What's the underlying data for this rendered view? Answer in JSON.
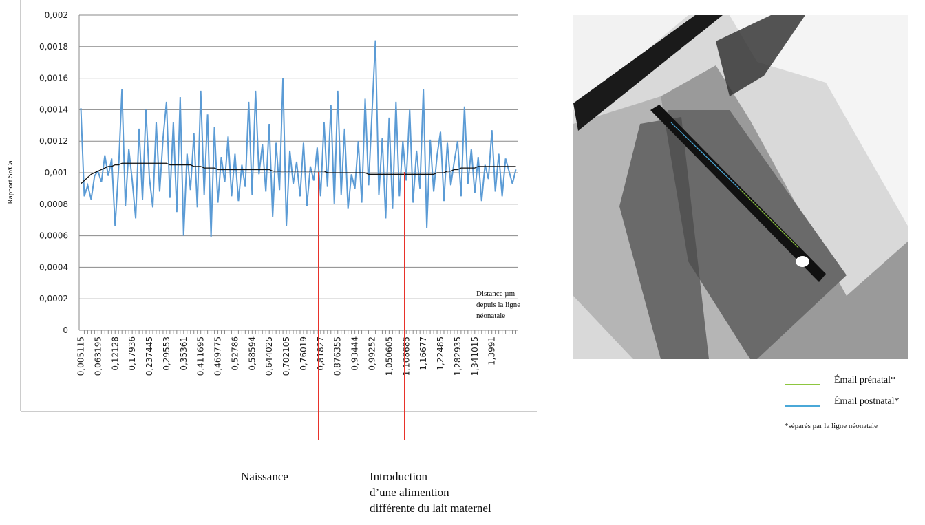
{
  "chart_data": {
    "type": "line",
    "y_axis_label": "Rapport Sr/Ca",
    "x_axis_label": [
      "Distance µm",
      "depuis la ligne",
      "néonatale"
    ],
    "annotations": [
      [
        "Naissance"
      ],
      [
        "Introduction",
        "d’une alimention",
        "différente du lait maternel"
      ]
    ],
    "annotation_color": "#e8322a",
    "ylim": [
      0,
      0.002
    ],
    "yticks": [
      0,
      {
        "value": 0.0002,
        "label": "0,0002"
      },
      {
        "value": 0.0004,
        "label": "0,0004"
      },
      {
        "value": 0.0006,
        "label": "0,0006"
      },
      {
        "value": 0.0008,
        "label": "0,0008"
      },
      {
        "value": 0.001,
        "label": "0,001"
      },
      {
        "value": 0.0012,
        "label": "0,0012"
      },
      {
        "value": 0.0014,
        "label": "0,0014"
      },
      {
        "value": 0.0016,
        "label": "0,0016"
      },
      {
        "value": 0.0018,
        "label": "0,0018"
      },
      {
        "value": 0.002,
        "label": "0,002"
      }
    ],
    "grid": true,
    "categories": [
      "0,005115",
      null,
      null,
      null,
      null,
      "0,063195",
      null,
      null,
      null,
      null,
      "0,12128",
      null,
      null,
      null,
      null,
      "0,17936",
      null,
      null,
      null,
      null,
      "0,237445",
      null,
      null,
      null,
      null,
      "0,29553",
      null,
      null,
      null,
      null,
      "0,35361",
      null,
      null,
      null,
      null,
      "0,411695",
      null,
      null,
      null,
      null,
      "0,469775",
      null,
      null,
      null,
      null,
      "0,52786",
      null,
      null,
      null,
      null,
      "0,58594",
      null,
      null,
      null,
      null,
      "0,644025",
      null,
      null,
      null,
      null,
      "0,702105",
      null,
      null,
      null,
      null,
      "0,76019",
      null,
      null,
      null,
      null,
      "0,81827",
      null,
      null,
      null,
      null,
      "0,876355",
      null,
      null,
      null,
      null,
      "0,93444",
      null,
      null,
      null,
      null,
      "0,99252",
      null,
      null,
      null,
      null,
      "1,050605",
      null,
      null,
      null,
      null,
      "1,108685",
      null,
      null,
      null,
      null,
      "1,16677",
      null,
      null,
      null,
      null,
      "1,22485",
      null,
      null,
      null,
      null,
      "1,282935",
      null,
      null,
      null,
      null,
      "1,341015",
      null,
      null,
      null,
      null,
      "1,3991",
      null,
      null,
      null,
      null,
      null,
      null,
      null
    ],
    "series": [
      {
        "color": "#5b9bd5",
        "values": [
          0.00141,
          0.00085,
          0.00092,
          0.00083,
          0.00098,
          0.00101,
          0.00094,
          0.00111,
          0.00098,
          0.00109,
          0.00066,
          0.00102,
          0.00153,
          0.00079,
          0.00115,
          0.00095,
          0.00071,
          0.00128,
          0.00083,
          0.0014,
          0.00097,
          0.00078,
          0.00132,
          0.00088,
          0.00122,
          0.00145,
          0.00084,
          0.00132,
          0.00075,
          0.00148,
          0.0006,
          0.00112,
          0.00089,
          0.00125,
          0.00078,
          0.00152,
          0.00086,
          0.00137,
          0.00059,
          0.00129,
          0.00081,
          0.0011,
          0.00094,
          0.00123,
          0.00085,
          0.00112,
          0.00082,
          0.00105,
          0.00091,
          0.00145,
          0.00086,
          0.00152,
          0.00099,
          0.00118,
          0.00088,
          0.00131,
          0.00072,
          0.00119,
          0.00089,
          0.0016,
          0.00066,
          0.00114,
          0.00093,
          0.00107,
          0.00085,
          0.00119,
          0.00079,
          0.00104,
          0.00095,
          0.00116,
          0.00085,
          0.00132,
          0.00091,
          0.00143,
          0.0008,
          0.00152,
          0.00086,
          0.00128,
          0.00077,
          0.00099,
          0.0009,
          0.0012,
          0.00081,
          0.00147,
          0.00092,
          0.00138,
          0.00184,
          0.00086,
          0.00122,
          0.00071,
          0.00135,
          0.00077,
          0.00145,
          0.00085,
          0.0012,
          0.00095,
          0.0014,
          0.00081,
          0.00114,
          0.0009,
          0.00153,
          0.00065,
          0.00121,
          0.00088,
          0.00111,
          0.00126,
          0.00082,
          0.00119,
          0.00092,
          0.00107,
          0.0012,
          0.00085,
          0.00142,
          0.00093,
          0.00115,
          0.00087,
          0.0011,
          0.00082,
          0.00105,
          0.00096,
          0.00127,
          0.00088,
          0.00112,
          0.00085,
          0.00109,
          0.00101,
          0.00093,
          0.00102
        ]
      },
      {
        "color": "#111111",
        "values": [
          0.00093,
          0.00095,
          0.00097,
          0.00099,
          0.001,
          0.00101,
          0.00102,
          0.00103,
          0.00104,
          0.00104,
          0.00105,
          0.00105,
          0.00106,
          0.00106,
          0.00106,
          0.00106,
          0.00106,
          0.00106,
          0.00106,
          0.00106,
          0.00106,
          0.00106,
          0.00106,
          0.00106,
          0.00106,
          0.00106,
          0.00105,
          0.00105,
          0.00105,
          0.00105,
          0.00105,
          0.00105,
          0.00105,
          0.00104,
          0.00104,
          0.00104,
          0.00103,
          0.00103,
          0.00103,
          0.00103,
          0.00102,
          0.00102,
          0.00102,
          0.00102,
          0.00102,
          0.00102,
          0.00102,
          0.00102,
          0.00102,
          0.00102,
          0.00102,
          0.00102,
          0.00102,
          0.00102,
          0.00102,
          0.00102,
          0.00101,
          0.00101,
          0.00101,
          0.00101,
          0.00101,
          0.00101,
          0.00101,
          0.00101,
          0.00101,
          0.00101,
          0.00101,
          0.00101,
          0.00101,
          0.00101,
          0.00101,
          0.00101,
          0.001,
          0.001,
          0.001,
          0.001,
          0.001,
          0.001,
          0.001,
          0.001,
          0.001,
          0.001,
          0.001,
          0.001,
          0.00099,
          0.00099,
          0.00099,
          0.00099,
          0.00099,
          0.00099,
          0.00099,
          0.00099,
          0.00099,
          0.00099,
          0.00099,
          0.00099,
          0.00099,
          0.00099,
          0.00099,
          0.00099,
          0.00099,
          0.00099,
          0.00099,
          0.00099,
          0.001,
          0.001,
          0.001,
          0.00101,
          0.00101,
          0.00102,
          0.00102,
          0.00103,
          0.00103,
          0.00103,
          0.00103,
          0.00103,
          0.00104,
          0.00104,
          0.00104,
          0.00104,
          0.00104,
          0.00104,
          0.00104,
          0.00104,
          0.00104,
          0.00104,
          0.00104,
          0.00104
        ]
      }
    ]
  },
  "figure": {
    "legend": [
      {
        "label": "Émail prénatal*",
        "color": "#8dc63f"
      },
      {
        "label": "Émail postnatal*",
        "color": "#4aa8d8"
      }
    ],
    "note": "*séparés par la ligne néonatale"
  }
}
